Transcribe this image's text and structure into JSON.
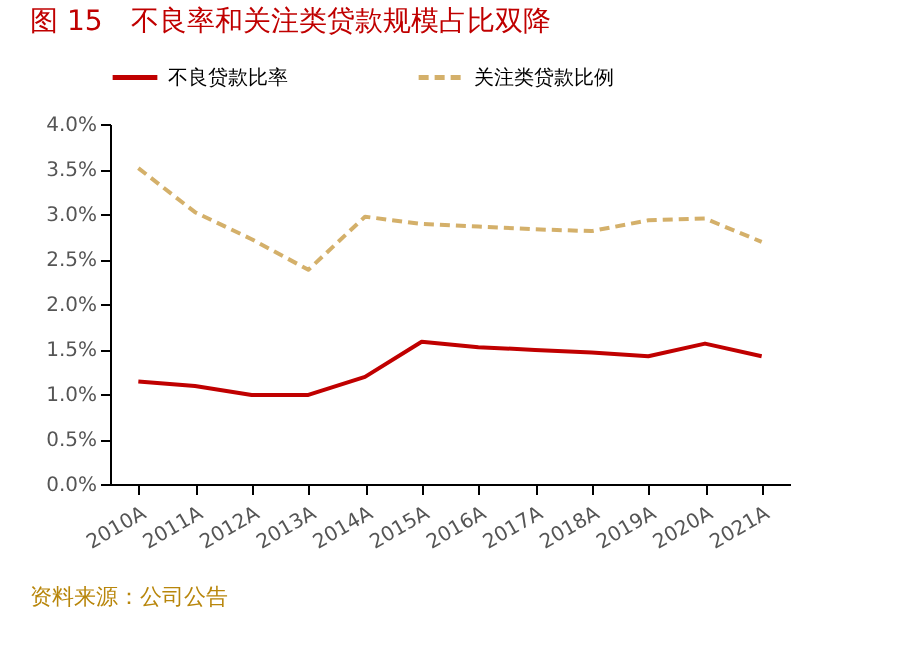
{
  "chart_data": {
    "type": "line",
    "title": "图 15　不良率和关注类贷款规模占比双降",
    "categories": [
      "2010A",
      "2011A",
      "2012A",
      "2013A",
      "2014A",
      "2015A",
      "2016A",
      "2017A",
      "2018A",
      "2019A",
      "2020A",
      "2021A"
    ],
    "series": [
      {
        "name": "不良贷款比率",
        "color": "#c00000",
        "line_style": "solid",
        "values": [
          1.14,
          1.09,
          0.99,
          0.99,
          1.19,
          1.58,
          1.52,
          1.49,
          1.46,
          1.42,
          1.56,
          1.42
        ]
      },
      {
        "name": "关注类贷款比例",
        "color": "#d4b06a",
        "line_style": "dashed",
        "values": [
          3.51,
          3.02,
          2.72,
          2.38,
          2.97,
          2.89,
          2.86,
          2.83,
          2.81,
          2.93,
          2.95,
          2.69
        ]
      }
    ],
    "ylim": [
      0,
      4
    ],
    "yticks": [
      {
        "value": 0,
        "label": "0.0%"
      },
      {
        "value": 0.5,
        "label": "0.5%"
      },
      {
        "value": 1,
        "label": "1.0%"
      },
      {
        "value": 1.5,
        "label": "1.5%"
      },
      {
        "value": 2,
        "label": "2.0%"
      },
      {
        "value": 2.5,
        "label": "2.5%"
      },
      {
        "value": 3,
        "label": "3.0%"
      },
      {
        "value": 3.5,
        "label": "3.5%"
      },
      {
        "value": 4,
        "label": "4.0%"
      }
    ],
    "grid": false,
    "legend": "top",
    "marker": "none",
    "annotations": [
      "资料来源：公司公告"
    ]
  }
}
